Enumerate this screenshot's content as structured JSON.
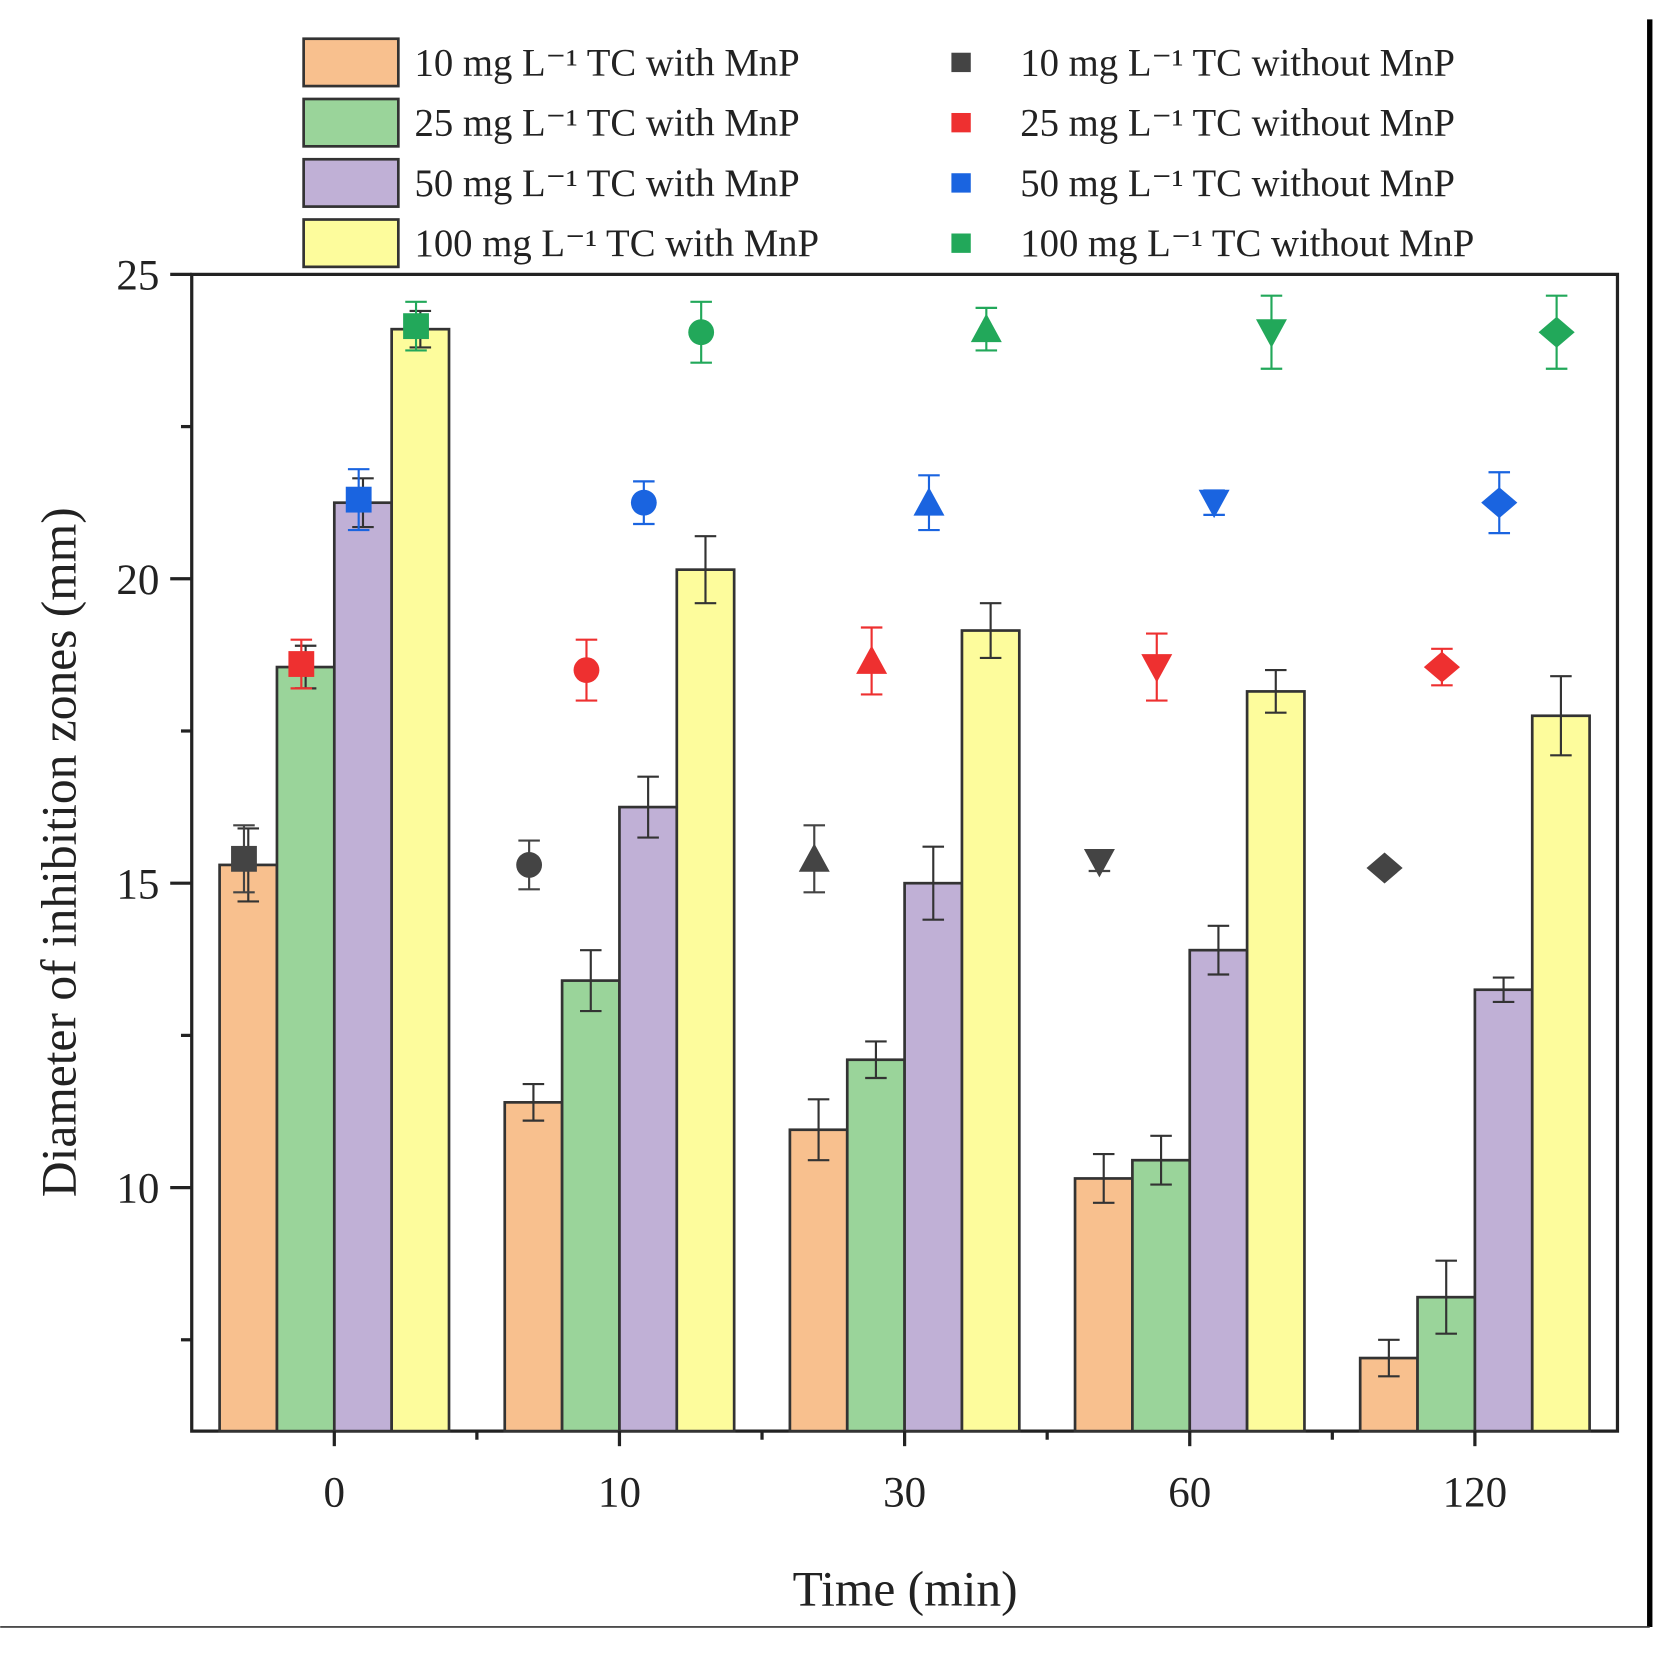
{
  "chart_data": {
    "type": "bar",
    "title": "",
    "xlabel": "Time (min)",
    "ylabel": "Diameter of inhibition zones (mm)",
    "categories": [
      "0",
      "10",
      "30",
      "60",
      "120"
    ],
    "ylim": [
      6,
      25
    ],
    "yticks": [
      "10",
      "15",
      "20",
      "25"
    ],
    "ytick_values": [
      10,
      15,
      20,
      25
    ],
    "grid": false,
    "legend_position": "top",
    "bar_series": [
      {
        "name": "10 mg L⁻¹ TC with MnP",
        "color": "#f8c08e",
        "values": [
          15.3,
          11.4,
          10.95,
          10.15,
          7.2
        ],
        "errors": [
          0.6,
          0.3,
          0.5,
          0.4,
          0.3
        ]
      },
      {
        "name": "25 mg L⁻¹ TC with MnP",
        "color": "#9ad49a",
        "values": [
          18.55,
          13.4,
          12.1,
          10.45,
          8.2
        ],
        "errors": [
          0.35,
          0.5,
          0.3,
          0.4,
          0.6
        ]
      },
      {
        "name": "50 mg L⁻¹ TC with MnP",
        "color": "#c0b0d6",
        "values": [
          21.25,
          16.25,
          15.0,
          13.9,
          13.25
        ],
        "errors": [
          0.4,
          0.5,
          0.6,
          0.4,
          0.2
        ]
      },
      {
        "name": "100 mg L⁻¹ TC with MnP",
        "color": "#fdfc9c",
        "values": [
          24.1,
          20.15,
          19.15,
          18.15,
          17.75
        ],
        "errors": [
          0.3,
          0.55,
          0.45,
          0.35,
          0.65
        ]
      }
    ],
    "scatter_series": [
      {
        "name": "10 mg L⁻¹ TC without MnP",
        "color": "#444444",
        "values": [
          15.4,
          15.3,
          15.4,
          15.35,
          15.25
        ],
        "errors": [
          0.55,
          0.4,
          0.55,
          0.15,
          0
        ]
      },
      {
        "name": "25 mg L⁻¹ TC without MnP",
        "color": "#ee3030",
        "values": [
          18.6,
          18.5,
          18.65,
          18.55,
          18.55
        ],
        "errors": [
          0.4,
          0.5,
          0.55,
          0.55,
          0.3
        ]
      },
      {
        "name": "50 mg L⁻¹ TC without MnP",
        "color": "#1a64e0",
        "values": [
          21.3,
          21.25,
          21.25,
          21.25,
          21.25
        ],
        "errors": [
          0.5,
          0.35,
          0.45,
          0.2,
          0.5
        ]
      },
      {
        "name": "100 mg L⁻¹ TC without MnP",
        "color": "#22a85a",
        "values": [
          24.15,
          24.05,
          24.1,
          24.05,
          24.05
        ],
        "errors": [
          0.4,
          0.5,
          0.35,
          0.6,
          0.6
        ]
      }
    ],
    "marker_shapes_by_category": [
      "square",
      "circle",
      "triangle-up",
      "triangle-down",
      "diamond"
    ]
  }
}
